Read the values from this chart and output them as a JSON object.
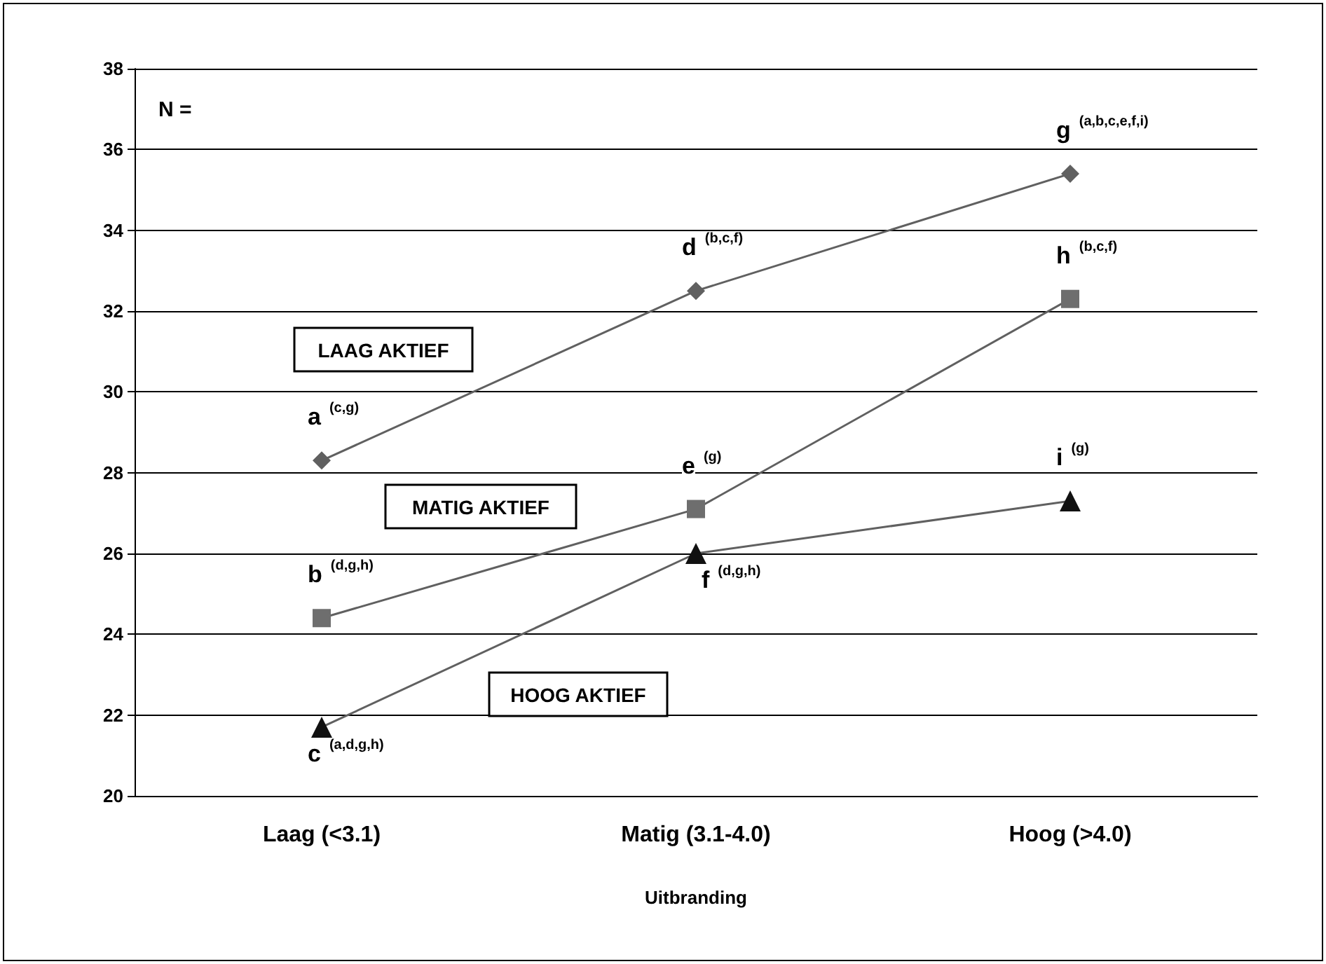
{
  "chart_data": {
    "type": "line",
    "xlabel": "Uitbranding",
    "categories": [
      "Laag (<3.1)",
      "Matig (3.1-4.0)",
      "Hoog (>4.0)"
    ],
    "series": [
      {
        "name": "LAAG AKTIEF",
        "color": "#606060",
        "marker": "diamond",
        "values": [
          28.3,
          32.5,
          35.4
        ]
      },
      {
        "name": "MATIG AKTIEF",
        "color": "#6e6e6e",
        "marker": "square",
        "values": [
          24.4,
          27.1,
          32.3
        ]
      },
      {
        "name": "HOOG AKTIEF",
        "color": "#111111",
        "marker": "triangle",
        "values": [
          21.7,
          26.0,
          27.3
        ]
      }
    ],
    "ylim": [
      20,
      38
    ],
    "yticks": [
      20,
      22,
      24,
      26,
      28,
      30,
      32,
      34,
      36,
      38
    ],
    "grid": "y",
    "legend": false,
    "annotations": [
      "N =",
      {
        "text": "a $^{(c,g)}$",
        "x": "Laag (<3.1)",
        "y": 28.3
      },
      {
        "text": "d $^{(b,c,f)}$",
        "x": "Matig (3.1-4.0)",
        "y": 32.5
      },
      {
        "text": "g $^{(a,b,c,e,f,i)}$",
        "x": "Hoog (>4.0)",
        "y": 35.4
      },
      {
        "text": "b $^{(d,g,h)}$",
        "x": "Laag (<3.1)",
        "y": 24.4
      },
      {
        "text": "e $^{(g)}$",
        "x": "Matig (3.1-4.0)",
        "y": 27.1
      },
      {
        "text": "h $^{(b,c,f)}$",
        "x": "Hoog (>4.0)",
        "y": 32.3
      },
      {
        "text": "c $^{(a,d,g,h)}$",
        "x": "Laag (<3.1)",
        "y": 21.7
      },
      {
        "text": "f $^{(d,g,h)}$",
        "x": "Matig (3.1-4.0)",
        "y": 26.0
      },
      {
        "text": "i $^{(g)}$",
        "x": "Hoog (>4.0)",
        "y": 27.3
      }
    ]
  }
}
